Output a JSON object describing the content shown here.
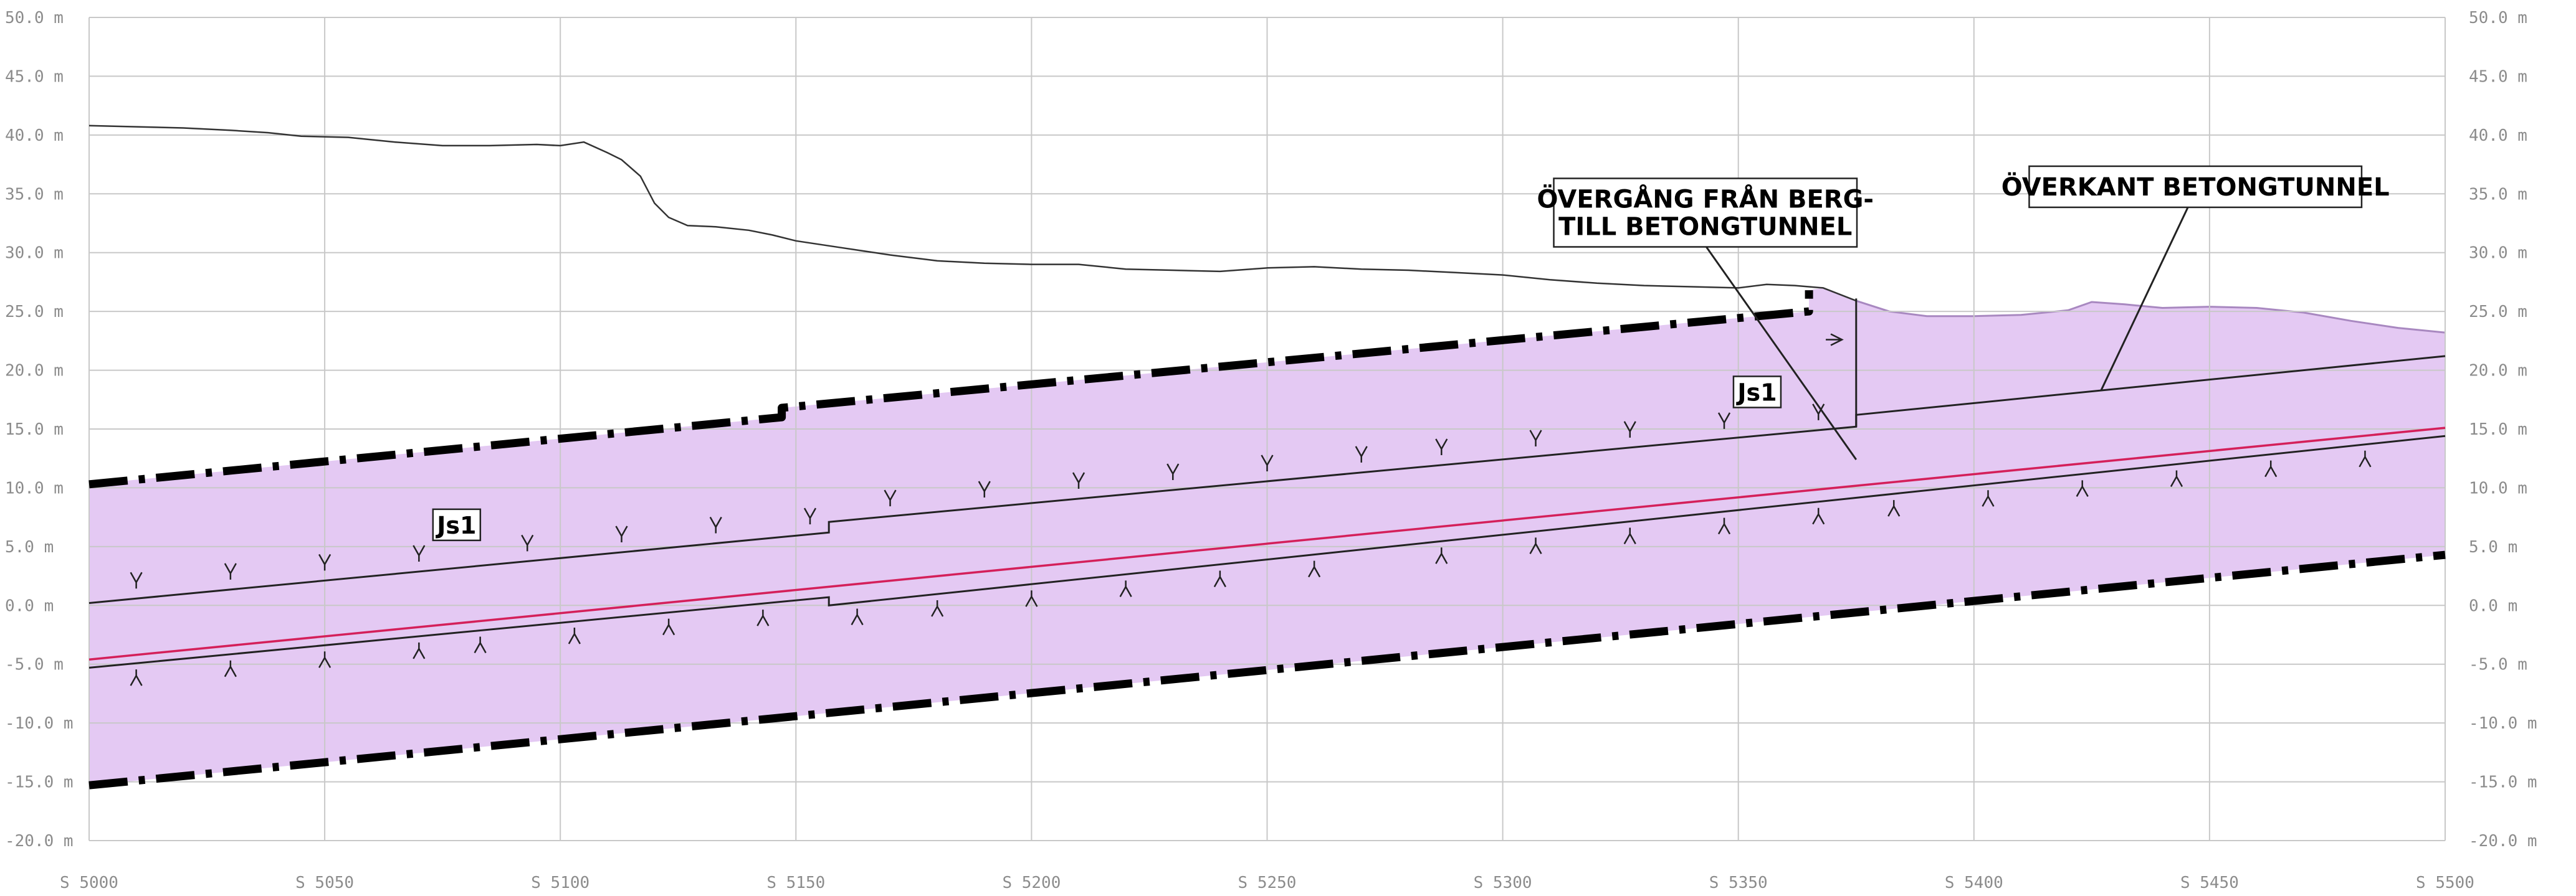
{
  "y_ticks": [
    {
      "v": 50,
      "label": "50.0"
    },
    {
      "v": 45,
      "label": "45.0"
    },
    {
      "v": 40,
      "label": "40.0"
    },
    {
      "v": 35,
      "label": "35.0"
    },
    {
      "v": 30,
      "label": "30.0"
    },
    {
      "v": 25,
      "label": "25.0"
    },
    {
      "v": 20,
      "label": "20.0"
    },
    {
      "v": 15,
      "label": "15.0"
    },
    {
      "v": 10,
      "label": "10.0"
    },
    {
      "v": 5,
      "label": "5.0"
    },
    {
      "v": 0,
      "label": "0.0"
    },
    {
      "v": -5,
      "label": "-5.0"
    },
    {
      "v": -10,
      "label": "-10.0"
    },
    {
      "v": -15,
      "label": "-15.0"
    },
    {
      "v": -20,
      "label": "-20.0"
    }
  ],
  "y_unit": "m",
  "x_ticks": [
    {
      "v": 5000,
      "label": "S 5000"
    },
    {
      "v": 5050,
      "label": "S 5050"
    },
    {
      "v": 5100,
      "label": "S 5100"
    },
    {
      "v": 5150,
      "label": "S 5150"
    },
    {
      "v": 5200,
      "label": "S 5200"
    },
    {
      "v": 5250,
      "label": "S 5250"
    },
    {
      "v": 5300,
      "label": "S 5300"
    },
    {
      "v": 5350,
      "label": "S 5350"
    },
    {
      "v": 5400,
      "label": "S 5400"
    },
    {
      "v": 5450,
      "label": "S 5450"
    },
    {
      "v": 5500,
      "label": "S 5500"
    }
  ],
  "callouts": {
    "transition": {
      "line1": "ÖVERGÅNG FRÅN BERG-",
      "line2": "TILL BETONGTUNNEL"
    },
    "top_concrete": {
      "line1": "ÖVERKANT BETONGTUNNEL"
    }
  },
  "zone_labels": [
    "Js1",
    "Js1"
  ],
  "colors": {
    "zone_fill": "#e4c9f3",
    "zone_edge": "#a888c0",
    "alignment": "#d4205a",
    "grid": "#c8c8c8",
    "boundary": "#000000",
    "terrain": "#333333"
  },
  "profiles": {
    "ground_surface": [
      [
        5000,
        40.8
      ],
      [
        5010,
        40.7
      ],
      [
        5020,
        40.6
      ],
      [
        5030,
        40.4
      ],
      [
        5038,
        40.2
      ],
      [
        5045,
        39.9
      ],
      [
        5055,
        39.8
      ],
      [
        5065,
        39.4
      ],
      [
        5075,
        39.1
      ],
      [
        5085,
        39.1
      ],
      [
        5095,
        39.2
      ],
      [
        5100,
        39.1
      ],
      [
        5105,
        39.4
      ],
      [
        5110,
        38.5
      ],
      [
        5113,
        37.9
      ],
      [
        5117,
        36.5
      ],
      [
        5120,
        34.2
      ],
      [
        5123,
        33.0
      ],
      [
        5127,
        32.3
      ],
      [
        5133,
        32.2
      ],
      [
        5140,
        31.9
      ],
      [
        5145,
        31.5
      ],
      [
        5150,
        31.0
      ],
      [
        5160,
        30.4
      ],
      [
        5170,
        29.8
      ],
      [
        5180,
        29.3
      ],
      [
        5190,
        29.1
      ],
      [
        5200,
        29.0
      ],
      [
        5210,
        29.0
      ],
      [
        5220,
        28.6
      ],
      [
        5230,
        28.5
      ],
      [
        5240,
        28.4
      ],
      [
        5250,
        28.7
      ],
      [
        5260,
        28.8
      ],
      [
        5270,
        28.6
      ],
      [
        5280,
        28.5
      ],
      [
        5290,
        28.3
      ],
      [
        5300,
        28.1
      ],
      [
        5310,
        27.7
      ],
      [
        5320,
        27.4
      ],
      [
        5330,
        27.2
      ],
      [
        5340,
        27.1
      ],
      [
        5350,
        27.0
      ],
      [
        5356,
        27.3
      ],
      [
        5362,
        27.2
      ],
      [
        5368,
        27.0
      ],
      [
        5375,
        25.9
      ]
    ],
    "terrain_over_concrete": [
      [
        5375,
        25.9
      ],
      [
        5382,
        25.0
      ],
      [
        5390,
        24.6
      ],
      [
        5400,
        24.6
      ],
      [
        5410,
        24.7
      ],
      [
        5420,
        25.1
      ],
      [
        5425,
        25.8
      ],
      [
        5432,
        25.6
      ],
      [
        5440,
        25.3
      ],
      [
        5450,
        25.4
      ],
      [
        5460,
        25.3
      ],
      [
        5470,
        24.9
      ],
      [
        5480,
        24.2
      ],
      [
        5490,
        23.6
      ],
      [
        5500,
        23.2
      ]
    ],
    "upper_boundary": [
      [
        5000,
        10.3
      ],
      [
        5147,
        16.0
      ],
      [
        5147,
        16.8
      ],
      [
        5365,
        25.0
      ],
      [
        5365,
        26.8
      ]
    ],
    "lower_boundary": [
      [
        5000,
        -15.3
      ],
      [
        5500,
        4.3
      ]
    ],
    "alignment": [
      [
        5000,
        -4.6
      ],
      [
        5500,
        15.1
      ]
    ],
    "tunnel_top": [
      [
        5000,
        0.2
      ],
      [
        5157,
        6.2
      ],
      [
        5157,
        7.1
      ],
      [
        5375,
        15.2
      ],
      [
        5375,
        16.2
      ],
      [
        5500,
        21.2
      ]
    ],
    "tunnel_bottom": [
      [
        5000,
        -5.3
      ],
      [
        5157,
        0.7
      ],
      [
        5157,
        0.0
      ],
      [
        5500,
        14.4
      ]
    ],
    "transition_vertical": [
      [
        5375,
        26.1
      ],
      [
        5375,
        15.2
      ]
    ],
    "leader_transition": [
      [
        5343,
        30.6
      ],
      [
        5375,
        12.4
      ]
    ],
    "leader_top_concrete": [
      [
        5447,
        35.2
      ],
      [
        5427,
        18.3
      ]
    ],
    "upper_marks": [
      5010,
      5030,
      5050,
      5070,
      5093,
      5113,
      5133,
      5153,
      5170,
      5190,
      5210,
      5230,
      5250,
      5270,
      5287,
      5307,
      5327,
      5347,
      5367
    ],
    "lower_marks": [
      5010,
      5030,
      5050,
      5070,
      5083,
      5103,
      5123,
      5143,
      5163,
      5180,
      5200,
      5220,
      5240,
      5260,
      5287,
      5307,
      5327,
      5347,
      5367,
      5383,
      5403,
      5423,
      5443,
      5463,
      5483
    ],
    "wall_marks": [
      [
        5372,
        22.6
      ]
    ]
  },
  "label_positions": {
    "transition_box": [
      5343,
      33.4
    ],
    "top_concrete_box": [
      5447,
      35.6
    ],
    "js1_left": [
      5078,
      6.8
    ],
    "js1_right": [
      5354,
      18.1
    ]
  }
}
